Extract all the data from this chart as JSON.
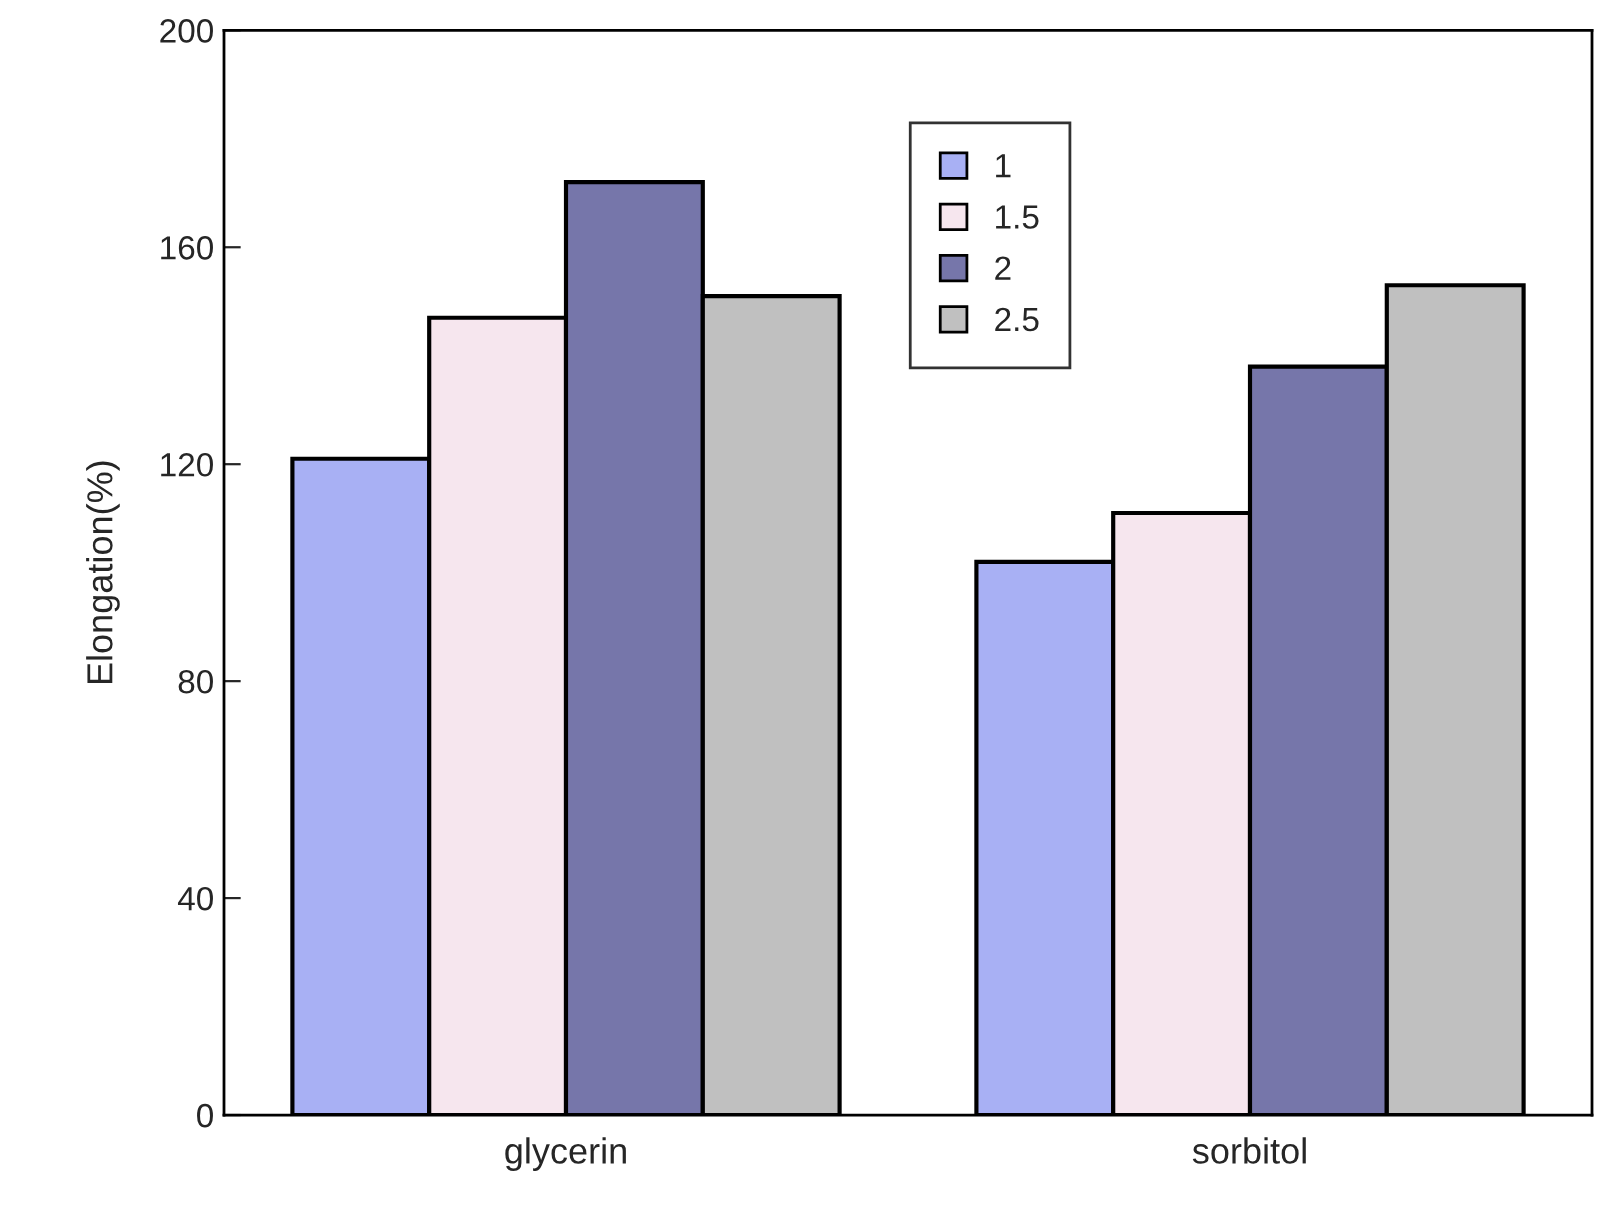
{
  "chart_data": {
    "type": "bar",
    "ylabel": "Elongation(%)",
    "categories": [
      "glycerin",
      "sorbitol"
    ],
    "series": [
      {
        "name": "1",
        "color": "#a8b0f4",
        "values": [
          121,
          102
        ]
      },
      {
        "name": "1.5",
        "color": "#f6e6ee",
        "values": [
          147,
          111
        ]
      },
      {
        "name": "2",
        "color": "#7676aa",
        "values": [
          172,
          138
        ]
      },
      {
        "name": "2.5",
        "color": "#c0c0c0",
        "values": [
          151,
          153
        ]
      }
    ],
    "ylim": [
      0,
      200
    ],
    "yticks": [
      0,
      40,
      80,
      120,
      160,
      200
    ],
    "legend": "top",
    "grid": false
  }
}
